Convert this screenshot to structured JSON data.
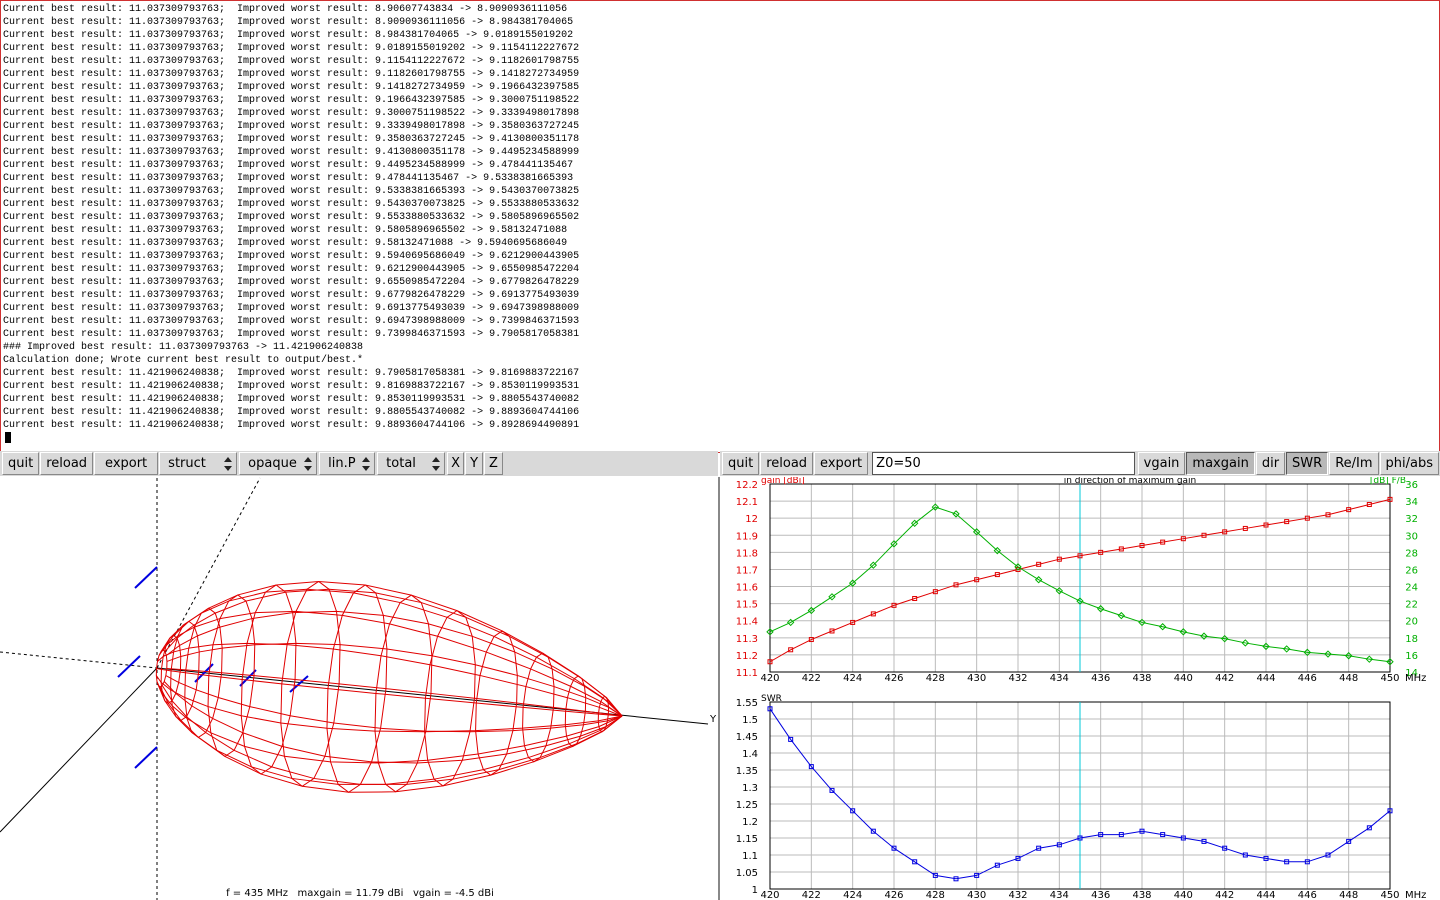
{
  "terminal": {
    "lines": [
      "Current best result: 11.037309793763;  Improved worst result: 8.90607743834 -> 8.9090936111056",
      "Current best result: 11.037309793763;  Improved worst result: 8.9090936111056 -> 8.984381704065",
      "Current best result: 11.037309793763;  Improved worst result: 8.984381704065 -> 9.0189155019202",
      "Current best result: 11.037309793763;  Improved worst result: 9.0189155019202 -> 9.1154112227672",
      "Current best result: 11.037309793763;  Improved worst result: 9.1154112227672 -> 9.1182601798755",
      "Current best result: 11.037309793763;  Improved worst result: 9.1182601798755 -> 9.1418272734959",
      "Current best result: 11.037309793763;  Improved worst result: 9.1418272734959 -> 9.1966432397585",
      "Current best result: 11.037309793763;  Improved worst result: 9.1966432397585 -> 9.3000751198522",
      "Current best result: 11.037309793763;  Improved worst result: 9.3000751198522 -> 9.3339498017898",
      "Current best result: 11.037309793763;  Improved worst result: 9.3339498017898 -> 9.3580363727245",
      "Current best result: 11.037309793763;  Improved worst result: 9.3580363727245 -> 9.4130800351178",
      "Current best result: 11.037309793763;  Improved worst result: 9.4130800351178 -> 9.4495234588999",
      "Current best result: 11.037309793763;  Improved worst result: 9.4495234588999 -> 9.478441135467",
      "Current best result: 11.037309793763;  Improved worst result: 9.478441135467 -> 9.5338381665393",
      "Current best result: 11.037309793763;  Improved worst result: 9.5338381665393 -> 9.5430370073825",
      "Current best result: 11.037309793763;  Improved worst result: 9.5430370073825 -> 9.5533880533632",
      "Current best result: 11.037309793763;  Improved worst result: 9.5533880533632 -> 9.5805896965502",
      "Current best result: 11.037309793763;  Improved worst result: 9.5805896965502 -> 9.58132471088",
      "Current best result: 11.037309793763;  Improved worst result: 9.58132471088 -> 9.5940695686049",
      "Current best result: 11.037309793763;  Improved worst result: 9.5940695686049 -> 9.6212900443905",
      "Current best result: 11.037309793763;  Improved worst result: 9.6212900443905 -> 9.6550985472204",
      "Current best result: 11.037309793763;  Improved worst result: 9.6550985472204 -> 9.6779826478229",
      "Current best result: 11.037309793763;  Improved worst result: 9.6779826478229 -> 9.6913775493039",
      "Current best result: 11.037309793763;  Improved worst result: 9.6913775493039 -> 9.6947398988009",
      "Current best result: 11.037309793763;  Improved worst result: 9.6947398988009 -> 9.7399846371593",
      "Current best result: 11.037309793763;  Improved worst result: 9.7399846371593 -> 9.7905817058381",
      "### Improved best result: 11.037309793763 -> 11.421906240838",
      "Calculation done; Wrote current best result to output/best.*",
      "Current best result: 11.421906240838;  Improved worst result: 9.7905817058381 -> 9.8169883722167",
      "Current best result: 11.421906240838;  Improved worst result: 9.8169883722167 -> 9.8530119993531",
      "Current best result: 11.421906240838;  Improved worst result: 9.8530119993531 -> 9.8805543740082",
      "Current best result: 11.421906240838;  Improved worst result: 9.8805543740082 -> 9.8893604744106",
      "Current best result: 11.421906240838;  Improved worst result: 9.8893604744106 -> 9.8928694490891"
    ]
  },
  "left_toolbar": {
    "buttons": [
      "quit",
      "reload",
      "export"
    ],
    "selects": [
      "struct",
      "opaque",
      "lin.P",
      "total"
    ],
    "axis_buttons": [
      "X",
      "Y",
      "Z"
    ]
  },
  "right_toolbar": {
    "buttons": [
      "quit",
      "reload",
      "export"
    ],
    "input": "Z0=50",
    "modes": [
      "vgain",
      "maxgain",
      "dir",
      "SWR",
      "Re/Im",
      "phi/abs"
    ]
  },
  "pattern_view": {
    "axis_label": "Y",
    "status": "f = 435 MHz   maxgain = 11.79 dBi   vgain = -4.5 dBi"
  },
  "gain_chart": {
    "type": "line",
    "title": "in direction of maximum gain",
    "y_label": "gain [dBi]",
    "y2_label": "[dB] F/B",
    "x_label": "MHz",
    "x": [
      420,
      421,
      422,
      423,
      424,
      425,
      426,
      427,
      428,
      429,
      430,
      431,
      432,
      433,
      434,
      435,
      436,
      437,
      438,
      439,
      440,
      441,
      442,
      443,
      444,
      445,
      446,
      447,
      448,
      449,
      450
    ],
    "xlim": [
      420,
      450
    ],
    "xticks": [
      420,
      422,
      424,
      426,
      428,
      430,
      432,
      434,
      436,
      438,
      440,
      442,
      444,
      446,
      448,
      450
    ],
    "ylim": [
      11.1,
      12.2
    ],
    "yticks": [
      11.1,
      11.2,
      11.3,
      11.4,
      11.5,
      11.6,
      11.7,
      11.8,
      11.9,
      12,
      12.1,
      12.2
    ],
    "y2lim": [
      14,
      36
    ],
    "y2ticks": [
      14,
      16,
      18,
      20,
      22,
      24,
      26,
      28,
      30,
      32,
      34,
      36
    ],
    "grid": true,
    "marker_x": 435,
    "series": [
      {
        "color": "#e00000",
        "values": [
          11.16,
          11.23,
          11.29,
          11.34,
          11.39,
          11.44,
          11.49,
          11.53,
          11.57,
          11.61,
          11.64,
          11.67,
          11.7,
          11.73,
          11.76,
          11.78,
          11.8,
          11.82,
          11.84,
          11.86,
          11.88,
          11.9,
          11.92,
          11.94,
          11.96,
          11.98,
          12.0,
          12.02,
          12.05,
          12.08,
          12.11
        ]
      },
      {
        "color": "#00b000",
        "axis": "y2",
        "values": [
          18.7,
          19.8,
          21.2,
          22.8,
          24.4,
          26.5,
          29.0,
          31.4,
          33.3,
          32.5,
          30.4,
          28.2,
          26.3,
          24.8,
          23.5,
          22.3,
          21.4,
          20.6,
          19.8,
          19.3,
          18.7,
          18.2,
          17.9,
          17.4,
          17.0,
          16.7,
          16.3,
          16.1,
          15.9,
          15.5,
          15.2
        ]
      }
    ]
  },
  "swr_chart": {
    "type": "line",
    "y_label": "SWR",
    "x_label": "MHz",
    "x": [
      420,
      421,
      422,
      423,
      424,
      425,
      426,
      427,
      428,
      429,
      430,
      431,
      432,
      433,
      434,
      435,
      436,
      437,
      438,
      439,
      440,
      441,
      442,
      443,
      444,
      445,
      446,
      447,
      448,
      449,
      450
    ],
    "xlim": [
      420,
      450
    ],
    "xticks": [
      420,
      422,
      424,
      426,
      428,
      430,
      432,
      434,
      436,
      438,
      440,
      442,
      444,
      446,
      448,
      450
    ],
    "ylim": [
      1,
      1.55
    ],
    "yticks": [
      1,
      1.05,
      1.1,
      1.15,
      1.2,
      1.25,
      1.3,
      1.35,
      1.4,
      1.45,
      1.5,
      1.55
    ],
    "grid": true,
    "marker_x": 435,
    "series": [
      {
        "color": "#0000e0",
        "values": [
          1.53,
          1.44,
          1.36,
          1.29,
          1.23,
          1.17,
          1.12,
          1.08,
          1.04,
          1.03,
          1.04,
          1.07,
          1.09,
          1.12,
          1.13,
          1.15,
          1.16,
          1.16,
          1.17,
          1.16,
          1.15,
          1.14,
          1.12,
          1.1,
          1.09,
          1.08,
          1.08,
          1.1,
          1.14,
          1.18,
          1.23
        ]
      }
    ]
  }
}
